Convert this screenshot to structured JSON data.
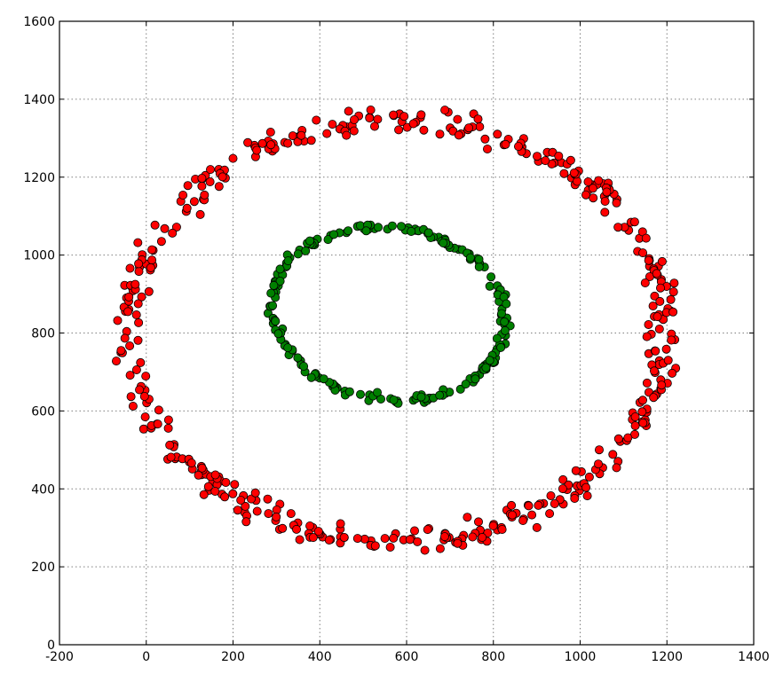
{
  "chart_data": {
    "type": "scatter",
    "title": "",
    "xlabel": "",
    "ylabel": "",
    "xlim": [
      -200,
      1400
    ],
    "ylim": [
      0,
      1600
    ],
    "x_ticks": [
      -200,
      0,
      200,
      400,
      600,
      800,
      1000,
      1200,
      1400
    ],
    "y_ticks": [
      0,
      200,
      400,
      600,
      800,
      1000,
      1200,
      1400,
      1600
    ],
    "grid": true,
    "legend": "none",
    "series": [
      {
        "color": "#ff0000",
        "shape": "ellipse",
        "center": [
          580,
          805
        ],
        "radii": [
          615,
          540
        ],
        "count": 470
      },
      {
        "color": "#008000",
        "shape": "ellipse",
        "center": [
          560,
          850
        ],
        "radii": [
          270,
          220
        ],
        "tilt_deg": -13,
        "count": 210
      }
    ]
  }
}
